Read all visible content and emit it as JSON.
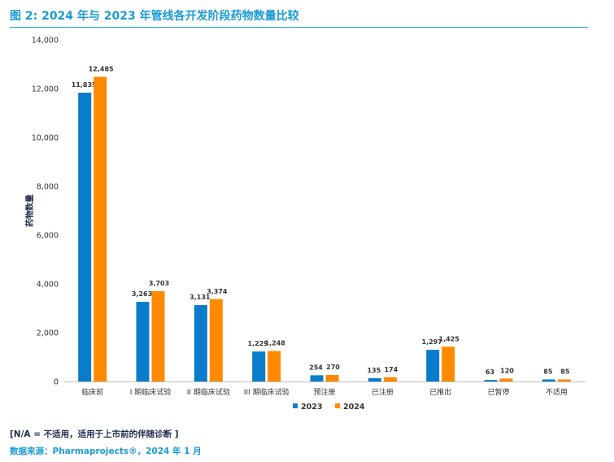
{
  "header": {
    "title": "图 2: 2024 年与 2023 年管线各开发阶段药物数量比较"
  },
  "chart_data": {
    "type": "bar",
    "title": "图 2: 2024 年与 2023 年管线各开发阶段药物数量比较",
    "xlabel": "",
    "ylabel": "药物数量",
    "ylim": [
      0,
      14000
    ],
    "yticks": [
      0,
      2000,
      4000,
      6000,
      8000,
      10000,
      12000,
      14000
    ],
    "ytick_labels": [
      "0",
      "2,000",
      "4,000",
      "6,000",
      "8,000",
      "10,000",
      "12,000",
      "14,000"
    ],
    "grid": false,
    "legend_position": "bottom-center",
    "categories": [
      "临床前",
      "I 期临床试验",
      "II 期临床试验",
      "III 期临床试验",
      "预注册",
      "已注册",
      "已推出",
      "已暂停",
      "不适用"
    ],
    "series": [
      {
        "name": "2023",
        "color": "#0a7ccc",
        "values": [
          11835,
          3263,
          3131,
          1229,
          254,
          135,
          1297,
          63,
          85
        ],
        "labels": [
          "11,835",
          "3,263",
          "3,131",
          "1,229",
          "254",
          "135",
          "1,297",
          "63",
          "85"
        ]
      },
      {
        "name": "2024",
        "color": "#ff8a00",
        "values": [
          12485,
          3703,
          3374,
          1248,
          270,
          174,
          1425,
          120,
          85
        ],
        "labels": [
          "12,485",
          "3,703",
          "3,374",
          "1,248",
          "270",
          "174",
          "1,425",
          "120",
          "85"
        ]
      }
    ]
  },
  "footer": {
    "note": "[N/A = 不适用，适用于上市前的伴随诊断 ]",
    "source": "数据来源：Pharmaprojects®，2024 年 1 月"
  }
}
